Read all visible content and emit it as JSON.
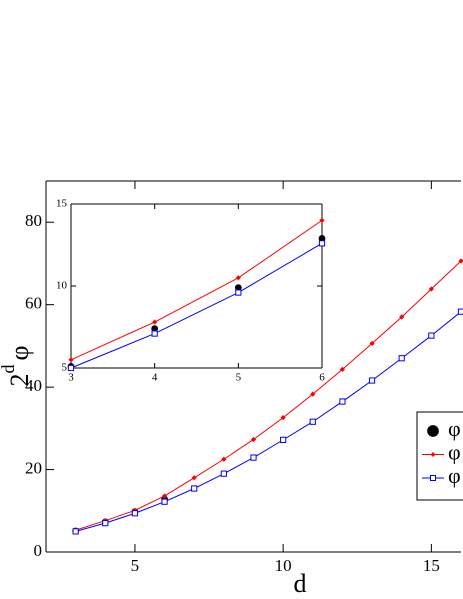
{
  "chart_data": [
    {
      "type": "line",
      "xlabel": "d",
      "ylabel": {
        "base": "2",
        "superscript": "d",
        "symbol": "φ"
      },
      "xlim": [
        2,
        16
      ],
      "ylim": [
        0,
        90
      ],
      "xticks": [
        5,
        10,
        15
      ],
      "yticks": [
        0,
        20,
        40,
        60,
        80
      ],
      "legend": "right",
      "series": [
        {
          "name": "φ",
          "color": "#000000",
          "marker": "dot",
          "line": false,
          "x": [
            3,
            4,
            5,
            6
          ],
          "values": [
            5.1,
            7.3,
            9.8,
            12.8
          ]
        },
        {
          "name": "φ",
          "color": "#ff0000",
          "marker": "diamond",
          "line": true,
          "x": [
            3,
            4,
            5,
            6,
            7,
            8,
            9,
            10,
            11,
            12,
            13,
            14,
            15,
            16
          ],
          "values": [
            5.3,
            7.6,
            10.1,
            13.6,
            18,
            22.5,
            27.3,
            32.6,
            38.3,
            44.3,
            50.6,
            57,
            63.8,
            70.6
          ]
        },
        {
          "name": "φ",
          "color": "#0000ff",
          "marker": "square",
          "line": true,
          "x": [
            3,
            4,
            5,
            6,
            7,
            8,
            9,
            10,
            11,
            12,
            13,
            14,
            15,
            16
          ],
          "values": [
            5.0,
            7.0,
            9.4,
            12.2,
            15.4,
            19,
            22.9,
            27.2,
            31.6,
            36.5,
            41.6,
            47,
            52.5,
            58.3
          ]
        }
      ]
    },
    {
      "type": "line",
      "xlim": [
        3,
        6
      ],
      "ylim": [
        5,
        15
      ],
      "xticks": [
        3,
        4,
        5,
        6
      ],
      "yticks": [
        5,
        10,
        15
      ],
      "series": [
        {
          "color": "#000000",
          "marker": "dot",
          "line": false,
          "x": [
            3,
            4,
            5,
            6
          ],
          "values": [
            5.1,
            7.4,
            9.9,
            12.9
          ]
        },
        {
          "color": "#ff0000",
          "marker": "diamond",
          "line": true,
          "x": [
            3,
            4,
            5,
            6
          ],
          "values": [
            5.5,
            7.8,
            10.5,
            14.0
          ]
        },
        {
          "color": "#0000ff",
          "marker": "square",
          "line": true,
          "x": [
            3,
            4,
            5,
            6
          ],
          "values": [
            5.0,
            7.1,
            9.6,
            12.6
          ]
        }
      ]
    }
  ]
}
